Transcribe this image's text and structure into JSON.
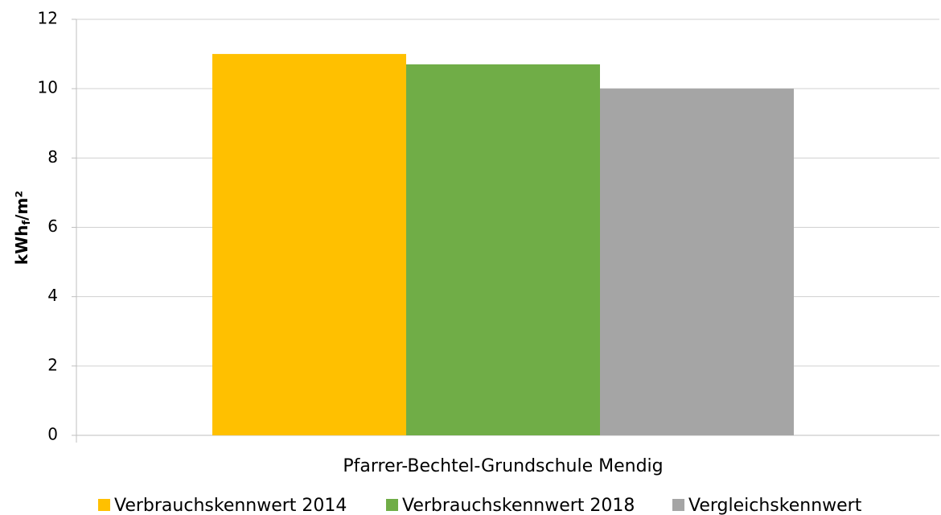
{
  "chart_data": {
    "type": "bar",
    "ylabel": [
      "kWh",
      "f",
      "/m²"
    ],
    "categories": [
      "Pfarrer-Bechtel-Grundschule Mendig"
    ],
    "series": [
      {
        "name": "Verbrauchskennwert 2014",
        "color": "#ffc000",
        "values": [
          11.0
        ]
      },
      {
        "name": "Verbrauchskennwert 2018",
        "color": "#70ad47",
        "values": [
          10.7
        ]
      },
      {
        "name": "Vergleichskennwert",
        "color": "#a5a5a5",
        "values": [
          10.0
        ]
      }
    ],
    "ylim": [
      0,
      12
    ],
    "yticks": [
      0,
      2,
      4,
      6,
      8,
      10,
      12
    ],
    "grid": true,
    "legend": "bottom"
  }
}
